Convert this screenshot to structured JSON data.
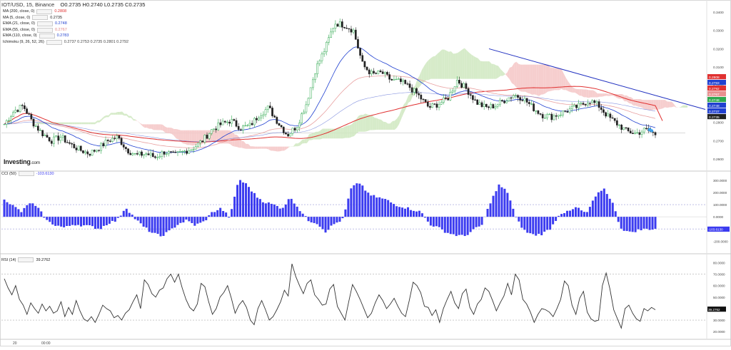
{
  "header": {
    "symbol_line": "IOT/USD, 15, Binance",
    "ohlc": "O0.2735  H0.2740  L0.2735  C0.2735"
  },
  "logo": {
    "brand": "Investing",
    "suffix": ".com"
  },
  "indicators": [
    {
      "label": "MA (200, close, 0)",
      "value": "0.2808",
      "color": "#e03030"
    },
    {
      "label": "MA (5, close, 0)",
      "value": "0.2735",
      "color": "#222222"
    },
    {
      "label": "EMA (21, close, 0)",
      "value": "0.2748",
      "color": "#2040d0"
    },
    {
      "label": "EMA (55, close, 0)",
      "value": "0.2767",
      "color": "#e08080"
    },
    {
      "label": "EMA (110, close, 0)",
      "value": "0.2783",
      "color": "#2040d0"
    },
    {
      "label": "Ichimoku (9, 26, 52, 26)",
      "value": "0.2737  0.2753  0.2735  0.2801  0.2792",
      "color": "#444444"
    }
  ],
  "colors": {
    "up": "#2fa84f",
    "down": "#222222",
    "ma200": "#e03030",
    "ema_blue": "#2040d0",
    "ema55": "#e8a0a0",
    "cloud_red": "#f5c6c6",
    "cloud_green": "#cfe8c0",
    "cci": "#3b3bf0",
    "rsi": "#333333",
    "trend": "#2030c0"
  },
  "chart_data": [
    {
      "type": "line",
      "subtype": "candlestick",
      "title": "IOT/USD, 15, Binance",
      "ylim": [
        0.255,
        0.345
      ],
      "yticks": [
        "0.3400",
        "0.3300",
        "0.3200",
        "0.3100",
        "0.3000",
        "0.2900",
        "0.2800",
        "0.2700",
        "0.2600"
      ],
      "price_path": [
        0.279,
        0.286,
        0.289,
        0.28,
        0.274,
        0.27,
        0.272,
        0.268,
        0.265,
        0.263,
        0.266,
        0.27,
        0.272,
        0.265,
        0.262,
        0.263,
        0.261,
        0.264,
        0.262,
        0.264,
        0.266,
        0.27,
        0.276,
        0.279,
        0.281,
        0.277,
        0.278,
        0.284,
        0.288,
        0.28,
        0.273,
        0.278,
        0.29,
        0.309,
        0.32,
        0.334,
        0.333,
        0.33,
        0.311,
        0.306,
        0.307,
        0.303,
        0.302,
        0.299,
        0.294,
        0.288,
        0.29,
        0.293,
        0.303,
        0.298,
        0.291,
        0.288,
        0.289,
        0.292,
        0.295,
        0.293,
        0.288,
        0.284,
        0.283,
        0.285,
        0.287,
        0.289,
        0.292,
        0.289,
        0.283,
        0.279,
        0.275,
        0.274,
        0.276,
        0.2735
      ],
      "overlays": {
        "ma200_end": 0.2808,
        "ema21_end": 0.2748,
        "ema55_end": 0.2767,
        "ema110_end": 0.2783
      },
      "trendline": {
        "from": 0.32,
        "to": 0.287
      },
      "price_labels": [
        {
          "text": "0.2808",
          "color": "#e03030"
        },
        {
          "text": "0.2783",
          "color": "#2040d0"
        },
        {
          "text": "0.2792",
          "color": "#e03030"
        },
        {
          "text": "0.2767",
          "color": "#e89090"
        },
        {
          "text": "0.2748",
          "color": "#2fa84f"
        },
        {
          "text": "0.2748",
          "color": "#2040d0"
        },
        {
          "text": "0.2737",
          "color": "#2040d0"
        },
        {
          "text": "0.2735",
          "color": "#222222"
        }
      ]
    },
    {
      "type": "bar",
      "title": "CCI (50)",
      "current": "-103.6130",
      "ylim": [
        -280,
        340
      ],
      "yticks": [
        "300.0000",
        "200.0000",
        "100.0000",
        "0.0000",
        "-100.0000",
        "-200.0000"
      ],
      "values": [
        150,
        90,
        40,
        120,
        60,
        -40,
        -70,
        -90,
        -60,
        -70,
        -80,
        -100,
        -50,
        -30,
        80,
        -10,
        -80,
        -130,
        -160,
        -120,
        -60,
        -30,
        -70,
        -40,
        40,
        70,
        -10,
        310,
        260,
        170,
        120,
        100,
        70,
        160,
        60,
        -30,
        -50,
        -120,
        -60,
        -20,
        240,
        280,
        180,
        160,
        140,
        100,
        80,
        60,
        40,
        -60,
        -90,
        -130,
        -150,
        -160,
        -110,
        -70,
        120,
        260,
        200,
        -20,
        -120,
        -150,
        -140,
        -90,
        30,
        40,
        80,
        20,
        150,
        240,
        130,
        -90,
        -130,
        -110,
        -100,
        -100
      ]
    },
    {
      "type": "line",
      "title": "RSI (14)",
      "current": "39.2762",
      "ylim": [
        17,
        84
      ],
      "yticks": [
        "80.0000",
        "70.0000",
        "60.0000",
        "50.0000",
        "40.0000",
        "30.0000",
        "20.0000"
      ],
      "values": [
        66,
        58,
        52,
        60,
        48,
        43,
        35,
        45,
        40,
        36,
        44,
        38,
        42,
        36,
        38,
        46,
        33,
        41,
        35,
        47,
        38,
        31,
        29,
        33,
        28,
        35,
        43,
        40,
        38,
        32,
        34,
        30,
        36,
        39,
        46,
        52,
        40,
        65,
        61,
        53,
        50,
        56,
        58,
        66,
        70,
        63,
        70,
        58,
        48,
        41,
        38,
        44,
        62,
        59,
        46,
        35,
        40,
        50,
        54,
        60,
        49,
        36,
        43,
        47,
        41,
        30,
        26,
        40,
        47,
        39,
        30,
        33,
        39,
        46,
        56,
        51,
        79,
        68,
        60,
        53,
        62,
        65,
        52,
        48,
        43,
        44,
        57,
        61,
        42,
        36,
        30,
        46,
        61,
        55,
        48,
        40,
        32,
        36,
        45,
        52,
        47,
        40,
        44,
        49,
        42,
        36,
        33,
        47,
        63,
        60,
        54,
        42,
        41,
        34,
        39,
        28,
        40,
        48,
        55,
        45,
        40,
        53,
        57,
        41,
        35,
        44,
        48,
        58,
        55,
        47,
        38,
        45,
        51,
        62,
        52,
        70,
        65,
        48,
        44,
        37,
        28,
        35,
        40,
        39,
        37,
        33,
        40,
        48,
        64,
        60,
        43,
        35,
        49,
        55,
        37,
        31,
        29,
        30,
        60,
        71,
        57,
        39,
        31,
        23,
        40,
        43,
        36,
        31,
        29,
        40,
        38,
        41,
        39
      ]
    }
  ],
  "x_axis": {
    "labels": [
      "20",
      "00:00"
    ]
  }
}
